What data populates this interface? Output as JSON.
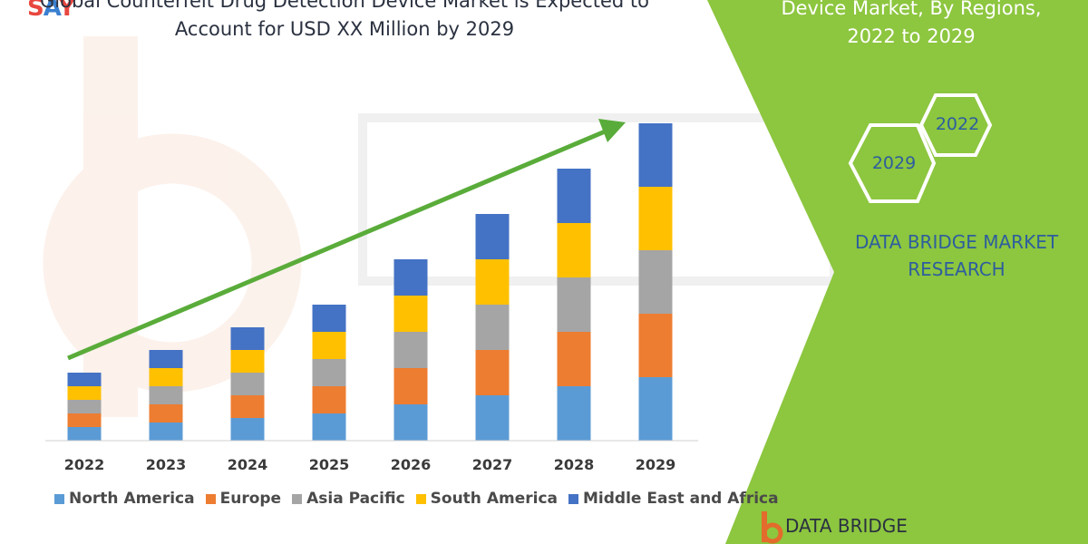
{
  "header": {
    "title_line1": "Global Counterfeit Drug Detection Device Market is Expected to",
    "title_line2": "Account for USD XX Million by 2029",
    "corner_logo": {
      "s": "S",
      "a": "A",
      "y": "Y"
    }
  },
  "side_panel": {
    "title_line1": "Device Market, By Regions,",
    "title_line2": "2022 to 2029",
    "hex_badges": [
      "2022",
      "2029"
    ],
    "brand_line1": "DATA BRIDGE MARKET",
    "brand_line2": "RESEARCH",
    "footer_brand": "DATA BRIDGE"
  },
  "colors": {
    "north_america": "#5b9bd5",
    "europe": "#ed7d31",
    "asia_pacific": "#a5a5a5",
    "south_america": "#ffc000",
    "middle_east_africa": "#4472c4",
    "green_panel": "#8dc63f",
    "trend_arrow": "#5aac3a"
  },
  "chart_data": {
    "type": "bar",
    "stacked": true,
    "title": "",
    "xlabel": "",
    "ylabel": "",
    "categories": [
      "2022",
      "2023",
      "2024",
      "2025",
      "2026",
      "2027",
      "2028",
      "2029"
    ],
    "series": [
      {
        "name": "North America",
        "values": [
          3.0,
          4.0,
          5.0,
          6.0,
          8.0,
          10.0,
          12.0,
          14.0
        ]
      },
      {
        "name": "Europe",
        "values": [
          3.0,
          4.0,
          5.0,
          6.0,
          8.0,
          10.0,
          12.0,
          14.0
        ]
      },
      {
        "name": "Asia Pacific",
        "values": [
          3.0,
          4.0,
          5.0,
          6.0,
          8.0,
          10.0,
          12.0,
          14.0
        ]
      },
      {
        "name": "South America",
        "values": [
          3.0,
          4.0,
          5.0,
          6.0,
          8.0,
          10.0,
          12.0,
          14.0
        ]
      },
      {
        "name": "Middle East and Africa",
        "values": [
          3.0,
          4.0,
          5.0,
          6.0,
          8.0,
          10.0,
          12.0,
          14.0
        ]
      }
    ],
    "ylim": [
      0,
      70
    ],
    "grid": false,
    "legend_position": "bottom",
    "trend_arrow": true
  }
}
